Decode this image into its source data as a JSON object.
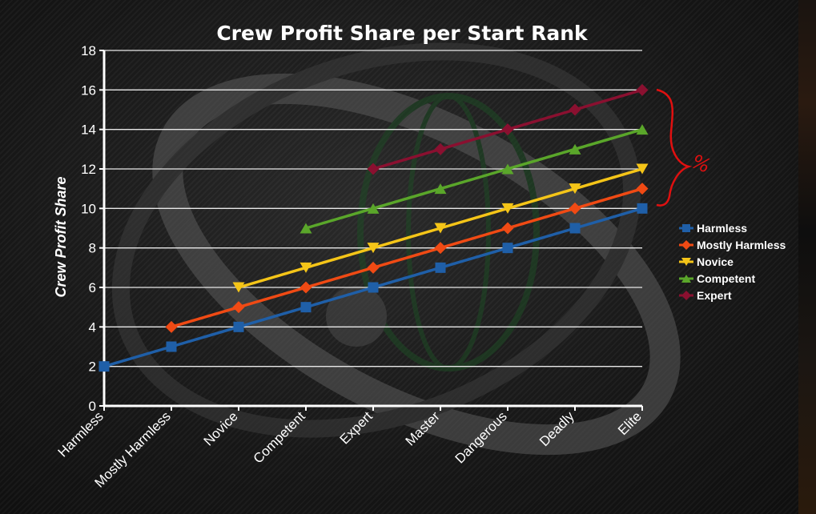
{
  "chart_data": {
    "type": "line",
    "title": "Crew Profit Share per Start Rank",
    "ylabel": "Crew Profit Share",
    "xlabel": "",
    "categories": [
      "Harmless",
      "Mostly Harmless",
      "Novice",
      "Competent",
      "Expert",
      "Master",
      "Dangerous",
      "Deadly",
      "Elite"
    ],
    "ylim": [
      0,
      18
    ],
    "yticks": [
      0,
      2,
      4,
      6,
      8,
      10,
      12,
      14,
      16,
      18
    ],
    "grid": true,
    "legend_position": "right",
    "series": [
      {
        "name": "Harmless",
        "color": "#1f5fa8",
        "marker": "square",
        "values": [
          2,
          3,
          4,
          5,
          6,
          7,
          8,
          9,
          10
        ]
      },
      {
        "name": "Mostly Harmless",
        "color": "#f04a14",
        "marker": "diamond",
        "values": [
          null,
          4,
          5,
          6,
          7,
          8,
          9,
          10,
          11
        ]
      },
      {
        "name": "Novice",
        "color": "#f5c518",
        "marker": "triangle-down",
        "values": [
          null,
          null,
          6,
          7,
          8,
          9,
          10,
          11,
          12
        ]
      },
      {
        "name": "Competent",
        "color": "#5aa62a",
        "marker": "triangle-up",
        "values": [
          null,
          null,
          null,
          9,
          10,
          11,
          12,
          13,
          14
        ]
      },
      {
        "name": "Expert",
        "color": "#8a1030",
        "marker": "diamond",
        "values": [
          null,
          null,
          null,
          null,
          12,
          13,
          14,
          15,
          16
        ]
      }
    ],
    "annotation": {
      "text": "%",
      "color": "#e01010"
    }
  }
}
